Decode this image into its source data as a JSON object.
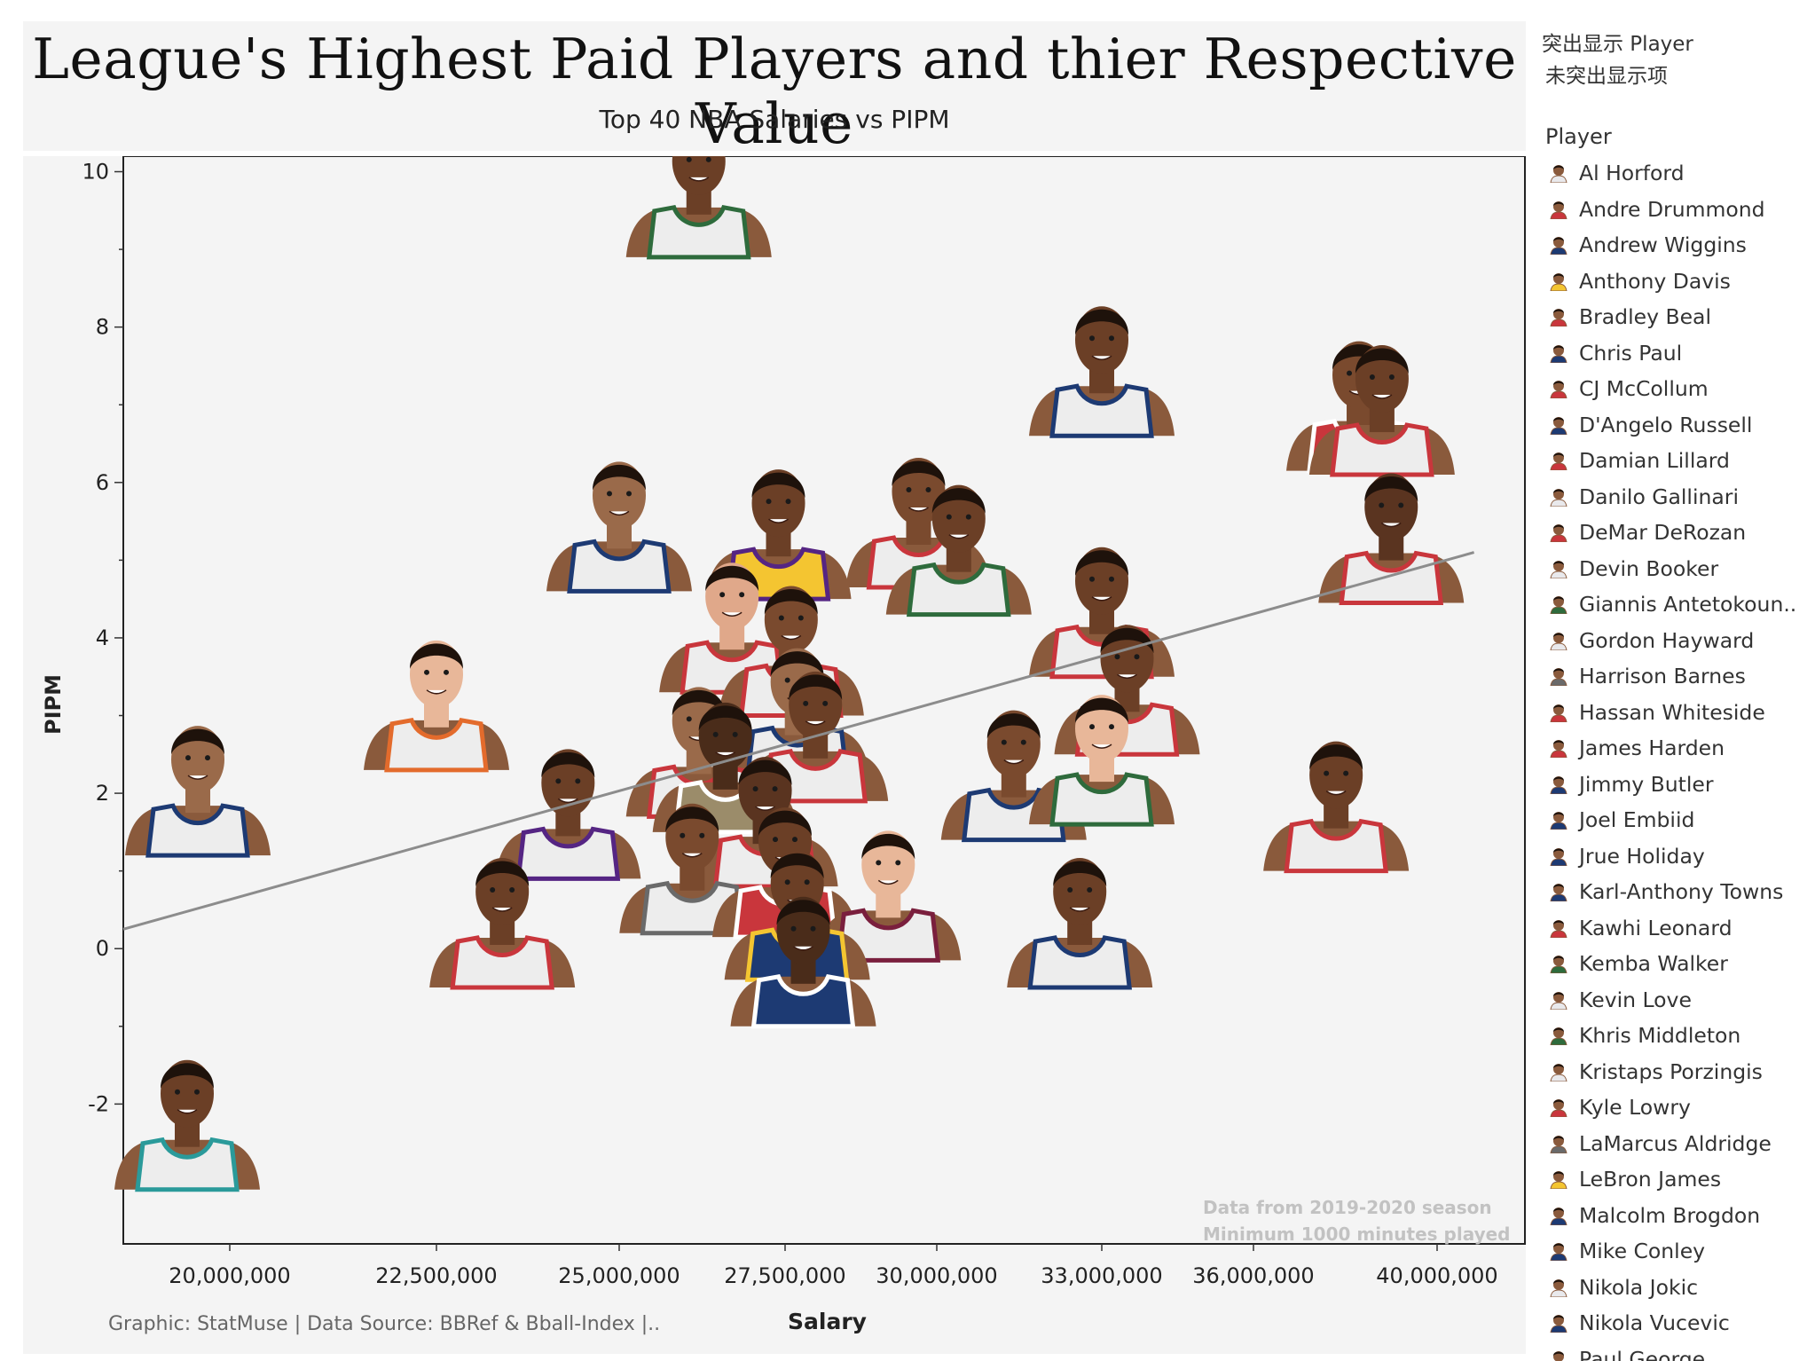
{
  "title": "League's Highest Paid Players and thier Respective Value",
  "subtitle": "Top 40 NBA Salaries vs PIPM",
  "credit": "Graphic: StatMuse | Data Source: BBRef & Bball-Index |..",
  "highlight": {
    "label": "突出显示 Player",
    "value": "未突出显示项"
  },
  "legend": {
    "title": "Player",
    "items": [
      {
        "name": "Al Horford",
        "jersey": "#e9e9ec"
      },
      {
        "name": "Andre Drummond",
        "jersey": "#c9363c"
      },
      {
        "name": "Andrew Wiggins",
        "jersey": "#1d3a73"
      },
      {
        "name": "Anthony Davis",
        "jersey": "#f4c531"
      },
      {
        "name": "Bradley Beal",
        "jersey": "#c9363c"
      },
      {
        "name": "Chris Paul",
        "jersey": "#1d3a73"
      },
      {
        "name": "CJ McCollum",
        "jersey": "#c9363c"
      },
      {
        "name": "D'Angelo Russell",
        "jersey": "#1d3a73"
      },
      {
        "name": "Damian Lillard",
        "jersey": "#c9363c"
      },
      {
        "name": "Danilo Gallinari",
        "jersey": "#e9e9ec"
      },
      {
        "name": "DeMar DeRozan",
        "jersey": "#c9363c"
      },
      {
        "name": "Devin Booker",
        "jersey": "#e9e9ec"
      },
      {
        "name": "Giannis Antetokoun..",
        "jersey": "#2e6b3c"
      },
      {
        "name": "Gordon Hayward",
        "jersey": "#e9e9ec"
      },
      {
        "name": "Harrison Barnes",
        "jersey": "#6a6a6a"
      },
      {
        "name": "Hassan Whiteside",
        "jersey": "#c9363c"
      },
      {
        "name": "James Harden",
        "jersey": "#c9363c"
      },
      {
        "name": "Jimmy Butler",
        "jersey": "#1d3a73"
      },
      {
        "name": "Joel Embiid",
        "jersey": "#1d3a73"
      },
      {
        "name": "Jrue Holiday",
        "jersey": "#1d3a73"
      },
      {
        "name": "Karl-Anthony Towns",
        "jersey": "#1d3a73"
      },
      {
        "name": "Kawhi Leonard",
        "jersey": "#c9363c"
      },
      {
        "name": "Kemba Walker",
        "jersey": "#2e6b3c"
      },
      {
        "name": "Kevin Love",
        "jersey": "#e9e9ec"
      },
      {
        "name": "Khris Middleton",
        "jersey": "#2e6b3c"
      },
      {
        "name": "Kristaps Porzingis",
        "jersey": "#e9e9ec"
      },
      {
        "name": "Kyle Lowry",
        "jersey": "#c9363c"
      },
      {
        "name": "LaMarcus Aldridge",
        "jersey": "#6a6a6a"
      },
      {
        "name": "LeBron James",
        "jersey": "#f4c531"
      },
      {
        "name": "Malcolm Brogdon",
        "jersey": "#1d3a73"
      },
      {
        "name": "Mike Conley",
        "jersey": "#1d3a73"
      },
      {
        "name": "Nikola Jokic",
        "jersey": "#e9e9ec"
      },
      {
        "name": "Nikola Vucevic",
        "jersey": "#1d3a73"
      },
      {
        "name": "Paul George",
        "jersey": "#e9e9ec"
      }
    ]
  },
  "chart_data": {
    "type": "scatter",
    "title": "League's Highest Paid Players and thier Respective Value",
    "subtitle": "Top 40 NBA Salaries vs PIPM",
    "xlabel": "Salary",
    "ylabel": "PIPM",
    "x_ticks": [
      "20,000,000",
      "22,500,000",
      "25,000,000",
      "27,500,000",
      "30,000,000",
      "33,000,000",
      "36,000,000",
      "40,000,000"
    ],
    "y_ticks": [
      -2,
      0,
      2,
      4,
      6,
      8,
      10
    ],
    "ylim": [
      -3.8,
      10.2
    ],
    "annotation": [
      "Data from 2019-2020 season",
      "Minimum 1000 minutes played"
    ],
    "trend_line": {
      "from": [
        19000000,
        0.25
      ],
      "to": [
        40800000,
        5.1
      ]
    },
    "points": [
      {
        "x": 26200000,
        "y": 8.9,
        "jersey": "#ededed",
        "trim": "#2e6b3c",
        "skin": "#6b3f26"
      },
      {
        "x": 33000000,
        "y": 6.6,
        "jersey": "#ededed",
        "trim": "#1d3a73",
        "skin": "#6b3f26"
      },
      {
        "x": 38300000,
        "y": 6.15,
        "jersey": "#c9363c",
        "trim": "#ffffff",
        "skin": "#7a4a2e"
      },
      {
        "x": 38800000,
        "y": 6.1,
        "jersey": "#ededed",
        "trim": "#c9363c",
        "skin": "#6b3f26"
      },
      {
        "x": 39000000,
        "y": 4.45,
        "jersey": "#ededed",
        "trim": "#c9363c",
        "skin": "#5a3420"
      },
      {
        "x": 25000000,
        "y": 4.6,
        "jersey": "#ededed",
        "trim": "#1d3a73",
        "skin": "#9a6a4a"
      },
      {
        "x": 27400000,
        "y": 4.5,
        "jersey": "#f4c531",
        "trim": "#552583",
        "skin": "#6b3f26"
      },
      {
        "x": 29700000,
        "y": 4.65,
        "jersey": "#ededed",
        "trim": "#c9363c",
        "skin": "#7a4a2e"
      },
      {
        "x": 30400000,
        "y": 4.3,
        "jersey": "#ededed",
        "trim": "#2e6b3c",
        "skin": "#6b3f26"
      },
      {
        "x": 33000000,
        "y": 3.5,
        "jersey": "#ededed",
        "trim": "#c9363c",
        "skin": "#6b3f26"
      },
      {
        "x": 26700000,
        "y": 3.3,
        "jersey": "#ededed",
        "trim": "#c9363c",
        "skin": "#e0a88a"
      },
      {
        "x": 27600000,
        "y": 3.0,
        "jersey": "#ededed",
        "trim": "#c9363c",
        "skin": "#7a4a2e"
      },
      {
        "x": 27700000,
        "y": 2.2,
        "jersey": "#ededed",
        "trim": "#1d3a73",
        "skin": "#9a6a4a"
      },
      {
        "x": 33500000,
        "y": 2.5,
        "jersey": "#ededed",
        "trim": "#c9363c",
        "skin": "#6b3f26"
      },
      {
        "x": 22500000,
        "y": 2.3,
        "jersey": "#ededed",
        "trim": "#e36b2c",
        "skin": "#e8b799"
      },
      {
        "x": 19700000,
        "y": 1.2,
        "jersey": "#ededed",
        "trim": "#1d3a73",
        "skin": "#9a6a4a"
      },
      {
        "x": 26200000,
        "y": 1.7,
        "jersey": "#ededed",
        "trim": "#c9363c",
        "skin": "#9a6a4a"
      },
      {
        "x": 26600000,
        "y": 1.5,
        "jersey": "#9b8c6a",
        "trim": "#ffffff",
        "skin": "#4a2c1a"
      },
      {
        "x": 28000000,
        "y": 1.9,
        "jersey": "#ededed",
        "trim": "#c9363c",
        "skin": "#6b3f26"
      },
      {
        "x": 31400000,
        "y": 1.4,
        "jersey": "#ededed",
        "trim": "#1d3a73",
        "skin": "#7a4a2e"
      },
      {
        "x": 33000000,
        "y": 1.6,
        "jersey": "#ededed",
        "trim": "#2e6b3c",
        "skin": "#e8b799"
      },
      {
        "x": 37800000,
        "y": 1.0,
        "jersey": "#ededed",
        "trim": "#c9363c",
        "skin": "#6b3f26"
      },
      {
        "x": 24300000,
        "y": 0.9,
        "jersey": "#ededed",
        "trim": "#552583",
        "skin": "#6b3f26"
      },
      {
        "x": 27200000,
        "y": 0.8,
        "jersey": "#ededed",
        "trim": "#c9363c",
        "skin": "#5a3420"
      },
      {
        "x": 26100000,
        "y": 0.2,
        "jersey": "#ededed",
        "trim": "#6a6a6a",
        "skin": "#7a4a2e"
      },
      {
        "x": 27500000,
        "y": 0.15,
        "jersey": "#c9363c",
        "trim": "#ffffff",
        "skin": "#6b3f26"
      },
      {
        "x": 29200000,
        "y": -0.15,
        "jersey": "#ededed",
        "trim": "#7a1f3d",
        "skin": "#e8b799"
      },
      {
        "x": 32600000,
        "y": -0.5,
        "jersey": "#ededed",
        "trim": "#1d3a73",
        "skin": "#6b3f26"
      },
      {
        "x": 23400000,
        "y": -0.5,
        "jersey": "#ededed",
        "trim": "#c9363c",
        "skin": "#6b3f26"
      },
      {
        "x": 27700000,
        "y": -0.4,
        "jersey": "#1d3a73",
        "trim": "#f4c531",
        "skin": "#6b3f26"
      },
      {
        "x": 27800000,
        "y": -1.0,
        "jersey": "#1d3a73",
        "trim": "#ffffff",
        "skin": "#4a2c1a"
      },
      {
        "x": 19600000,
        "y": -3.1,
        "jersey": "#ededed",
        "trim": "#2a9a9a",
        "skin": "#6b3f26"
      }
    ]
  }
}
